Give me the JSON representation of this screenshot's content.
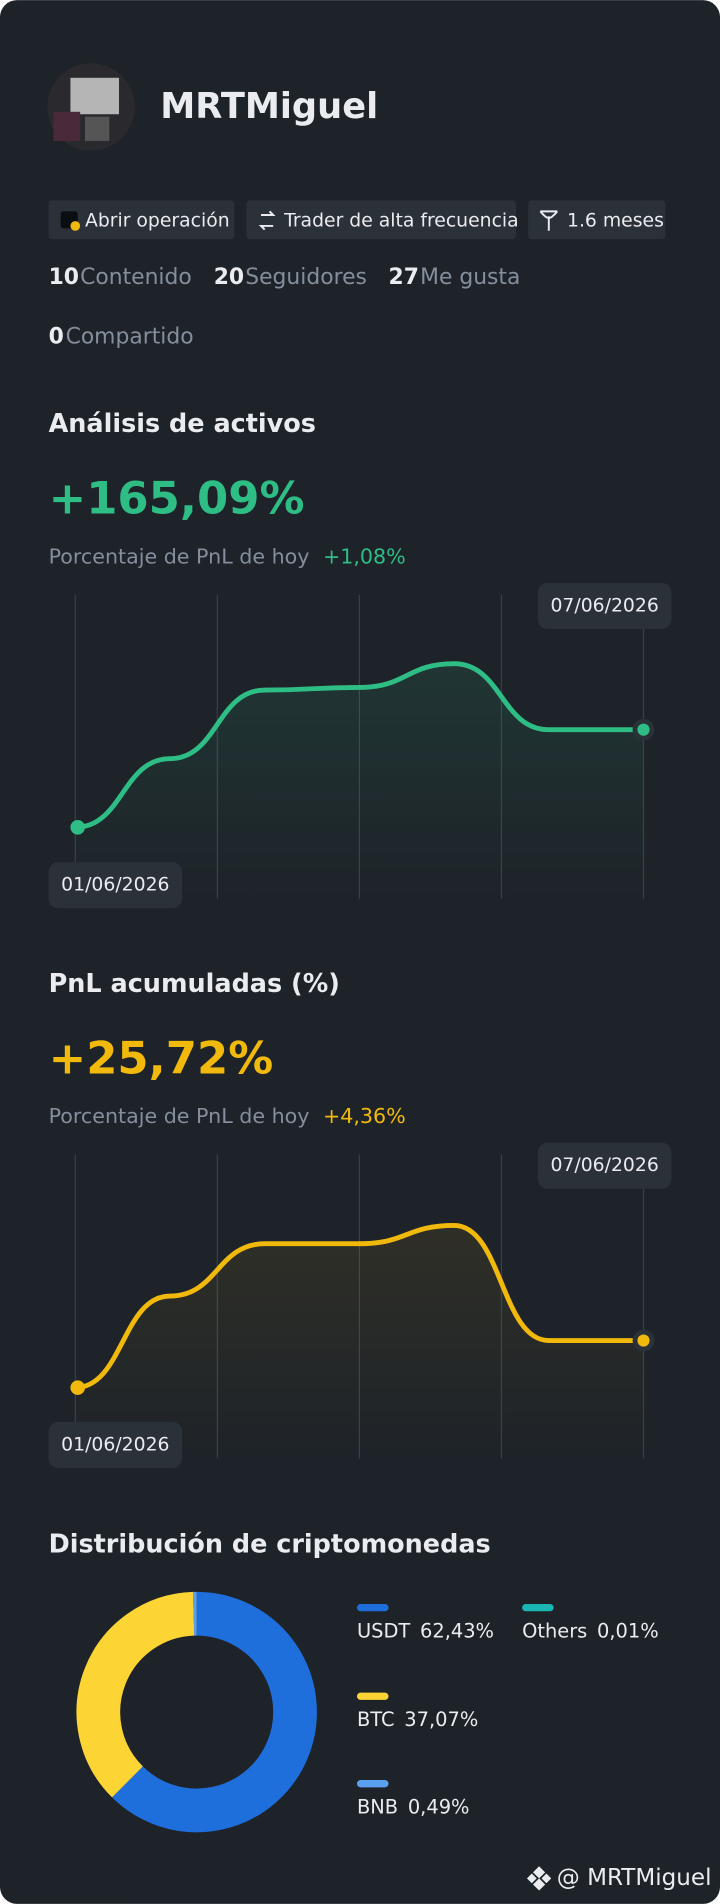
{
  "profile": {
    "username": "MRTMiguel",
    "badges": [
      "Abrir operación",
      "Trader de alta frecuencia",
      "1.6 meses"
    ],
    "stats": [
      {
        "value": 10,
        "label": "Contenido"
      },
      {
        "value": 20,
        "label": "Seguidores"
      },
      {
        "value": 27,
        "label": "Me gusta"
      },
      {
        "value": 0,
        "label": "Compartido"
      }
    ]
  },
  "chart_data": [
    {
      "type": "line",
      "title": "Análisis de activos",
      "headline": "+165,09%",
      "subtitle": "Porcentaje de PnL de hoy",
      "subtitle_value": "+1,08%",
      "categories": [
        "01/06/2026",
        null,
        null,
        null,
        null,
        null,
        "07/06/2026"
      ],
      "series": [
        {
          "color": "#2ebd85",
          "values": [
            0,
            26,
            52,
            53,
            62,
            37,
            37
          ]
        }
      ],
      "ylim": [
        -27,
        88
      ]
    },
    {
      "type": "line",
      "title": "PnL acumuladas (%)",
      "headline": "+25,72%",
      "subtitle": "Porcentaje de PnL de hoy",
      "subtitle_value": "+4,36%",
      "categories": [
        "01/06/2026",
        null,
        null,
        null,
        null,
        null,
        "07/06/2026"
      ],
      "series": [
        {
          "color": "#f0b90b",
          "values": [
            0,
            35,
            55,
            55,
            62,
            18,
            18
          ]
        }
      ],
      "ylim": [
        -27,
        89
      ]
    },
    {
      "type": "pie",
      "title": "Distribución de criptomonedas",
      "categories": [
        "USDT",
        "BTC",
        "BNB",
        "Others"
      ],
      "values": [
        62.43,
        37.07,
        0.49,
        0.01
      ],
      "value_labels": [
        "62,43%",
        "37,07%",
        "0,49%",
        "0,01%"
      ],
      "colors": [
        "#1e6fdc",
        "#fcd535",
        "#5aa0f0",
        "#1ab5b5"
      ]
    }
  ],
  "footer": {
    "handle": "@ MRTMiguel"
  }
}
